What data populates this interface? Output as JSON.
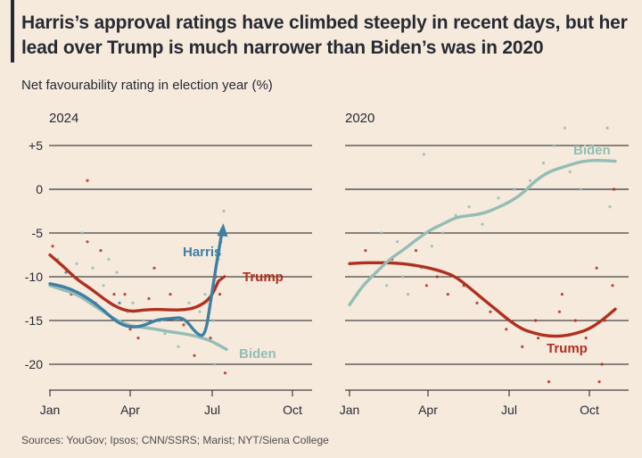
{
  "title": "Harris’s approval ratings have climbed steeply in recent days, but her lead over Trump is much narrower than Biden’s was in 2020",
  "subtitle": "Net favourability rating in election year (%)",
  "source": "Sources: YouGov; Ipsos; CNN/SSRS; Marist; NYT/Siena College",
  "colors": {
    "background": "#f6eadd",
    "harris": "#3f7fa3",
    "trump": "#b0301f",
    "biden": "#93bdb5",
    "gridline": "#1a1a1a",
    "zeroline": "#7a7a7a"
  },
  "chart_data": [
    {
      "type": "line",
      "panel": "2024",
      "ylim": [
        -23,
        6
      ],
      "yticks": [
        5,
        0,
        -5,
        -10,
        -15,
        -20
      ],
      "ytick_labels": [
        "+5",
        "0",
        "-5",
        "-10",
        "-15",
        "-20"
      ],
      "xticks": [
        "Jan",
        "Apr",
        "Jul",
        "Oct"
      ],
      "xlim_months": [
        1,
        10
      ],
      "series": [
        {
          "name": "Trump",
          "color": "#b0301f",
          "x": [
            1,
            1.5,
            2,
            2.5,
            3,
            3.5,
            4,
            4.5,
            5,
            5.5,
            6,
            6.5,
            7,
            7.3
          ],
          "y": [
            -7.5,
            -8.8,
            -10.3,
            -11.3,
            -12.5,
            -13.5,
            -14,
            -13.8,
            -13.7,
            -13.8,
            -13.8,
            -13.5,
            -12.5,
            -10.5
          ]
        },
        {
          "name": "Harris",
          "color": "#3f7fa3",
          "x": [
            1,
            1.5,
            2,
            2.5,
            3,
            3.5,
            4,
            4.5,
            5,
            5.5,
            6,
            6.5,
            6.8,
            7,
            7.2,
            7.45
          ],
          "y": [
            -10.8,
            -11.1,
            -11.7,
            -12.6,
            -13.8,
            -15.2,
            -15.8,
            -15.6,
            -14.9,
            -14.8,
            -14.6,
            -16.6,
            -16.8,
            -13,
            -9,
            -4.5
          ]
        },
        {
          "name": "Biden",
          "color": "#93bdb5",
          "x": [
            1,
            1.5,
            2,
            2.5,
            3,
            3.5,
            4,
            4.5,
            5,
            5.5,
            6,
            6.5,
            7,
            7.3,
            7.6
          ],
          "y": [
            -11,
            -11.5,
            -12,
            -13,
            -14,
            -15,
            -15.6,
            -15.8,
            -16,
            -16.3,
            -16.5,
            -16.8,
            -17.3,
            -17.8,
            -18.3
          ]
        }
      ],
      "labels": [
        {
          "text": "Harris",
          "series": "Harris"
        },
        {
          "text": "Trump",
          "series": "Trump"
        },
        {
          "text": "Biden",
          "series": "Biden"
        }
      ],
      "scatter": [
        {
          "x": 1.1,
          "y": -6.5,
          "c": "trump"
        },
        {
          "x": 1.3,
          "y": -8,
          "c": "biden"
        },
        {
          "x": 1.6,
          "y": -9.5,
          "c": "harris"
        },
        {
          "x": 1.8,
          "y": -12,
          "c": "trump"
        },
        {
          "x": 2,
          "y": -8.5,
          "c": "biden"
        },
        {
          "x": 2.2,
          "y": -5,
          "c": "biden"
        },
        {
          "x": 2.4,
          "y": -6,
          "c": "trump"
        },
        {
          "x": 2.4,
          "y": 1,
          "c": "trump"
        },
        {
          "x": 2.6,
          "y": -9,
          "c": "biden"
        },
        {
          "x": 2.7,
          "y": -13,
          "c": "trump"
        },
        {
          "x": 2.9,
          "y": -7,
          "c": "trump"
        },
        {
          "x": 3,
          "y": -11,
          "c": "biden"
        },
        {
          "x": 3.2,
          "y": -8,
          "c": "biden"
        },
        {
          "x": 3.4,
          "y": -12,
          "c": "trump"
        },
        {
          "x": 3.5,
          "y": -9.5,
          "c": "biden"
        },
        {
          "x": 3.6,
          "y": -13,
          "c": "harris"
        },
        {
          "x": 3.8,
          "y": -12,
          "c": "trump"
        },
        {
          "x": 3.9,
          "y": -14,
          "c": "biden"
        },
        {
          "x": 4,
          "y": -16,
          "c": "trump"
        },
        {
          "x": 4.1,
          "y": -13,
          "c": "biden"
        },
        {
          "x": 4.3,
          "y": -17,
          "c": "trump"
        },
        {
          "x": 4.5,
          "y": -15,
          "c": "biden"
        },
        {
          "x": 4.7,
          "y": -12.5,
          "c": "trump"
        },
        {
          "x": 4.9,
          "y": -9,
          "c": "trump"
        },
        {
          "x": 5.1,
          "y": -15,
          "c": "harris"
        },
        {
          "x": 5.3,
          "y": -16.5,
          "c": "biden"
        },
        {
          "x": 5.5,
          "y": -12,
          "c": "trump"
        },
        {
          "x": 5.8,
          "y": -18,
          "c": "biden"
        },
        {
          "x": 6,
          "y": -15.5,
          "c": "trump"
        },
        {
          "x": 6.2,
          "y": -13,
          "c": "biden"
        },
        {
          "x": 6.4,
          "y": -19,
          "c": "trump"
        },
        {
          "x": 6.6,
          "y": -14,
          "c": "biden"
        },
        {
          "x": 6.8,
          "y": -12,
          "c": "biden"
        },
        {
          "x": 7,
          "y": -17,
          "c": "trump"
        },
        {
          "x": 7.1,
          "y": -15,
          "c": "biden"
        },
        {
          "x": 7.2,
          "y": -10,
          "c": "trump"
        },
        {
          "x": 7.3,
          "y": -8,
          "c": "biden"
        },
        {
          "x": 7.4,
          "y": -6,
          "c": "biden"
        },
        {
          "x": 7.5,
          "y": -2.5,
          "c": "biden"
        },
        {
          "x": 7.35,
          "y": -12,
          "c": "trump"
        },
        {
          "x": 7.15,
          "y": -20,
          "c": "biden"
        },
        {
          "x": 7.55,
          "y": -21,
          "c": "trump"
        }
      ]
    },
    {
      "type": "line",
      "panel": "2020",
      "ylim": [
        -23,
        6
      ],
      "yticks": [
        5,
        0,
        -5,
        -10,
        -15,
        -20
      ],
      "xticks": [
        "Jan",
        "Apr",
        "Jul",
        "Oct"
      ],
      "xlim_months": [
        1,
        11
      ],
      "series": [
        {
          "name": "Biden",
          "color": "#93bdb5",
          "x": [
            1,
            1.5,
            2,
            2.5,
            3,
            3.5,
            4,
            4.5,
            5,
            5.5,
            6,
            6.5,
            7,
            7.5,
            8,
            8.5,
            9,
            9.5,
            10,
            10.5,
            11
          ],
          "y": [
            -13.2,
            -11,
            -9.5,
            -8,
            -7,
            -5.8,
            -4.7,
            -4,
            -3.2,
            -3,
            -2.8,
            -2.2,
            -1.5,
            -0.5,
            1,
            2,
            2.5,
            3,
            3.3,
            3.3,
            3.2
          ]
        },
        {
          "name": "Trump",
          "color": "#b0301f",
          "x": [
            1,
            1.5,
            2,
            2.5,
            3,
            3.5,
            4,
            4.5,
            5,
            5.5,
            6,
            6.5,
            7,
            7.5,
            8,
            8.5,
            9,
            9.5,
            10,
            10.5,
            11
          ],
          "y": [
            -8.5,
            -8.4,
            -8.4,
            -8.4,
            -8.5,
            -8.7,
            -9,
            -9.4,
            -10,
            -11.2,
            -12.5,
            -13.7,
            -15,
            -16,
            -16.5,
            -16.8,
            -16.8,
            -16.5,
            -16,
            -15,
            -13.7
          ]
        }
      ],
      "labels": [
        {
          "text": "Biden",
          "series": "Biden"
        },
        {
          "text": "Trump",
          "series": "Trump"
        }
      ],
      "scatter": [
        {
          "x": 1.3,
          "y": -12,
          "c": "biden"
        },
        {
          "x": 1.6,
          "y": -7,
          "c": "trump"
        },
        {
          "x": 1.8,
          "y": -10,
          "c": "biden"
        },
        {
          "x": 2,
          "y": -9.5,
          "c": "trump"
        },
        {
          "x": 2.2,
          "y": -5,
          "c": "biden"
        },
        {
          "x": 2.4,
          "y": -11,
          "c": "biden"
        },
        {
          "x": 2.6,
          "y": -8,
          "c": "trump"
        },
        {
          "x": 2.8,
          "y": -6,
          "c": "biden"
        },
        {
          "x": 3,
          "y": -10,
          "c": "biden"
        },
        {
          "x": 3.2,
          "y": -12,
          "c": "biden"
        },
        {
          "x": 3.5,
          "y": -7,
          "c": "trump"
        },
        {
          "x": 3.7,
          "y": -9,
          "c": "biden"
        },
        {
          "x": 3.9,
          "y": -11,
          "c": "trump"
        },
        {
          "x": 4.1,
          "y": -6.5,
          "c": "biden"
        },
        {
          "x": 4.3,
          "y": -10,
          "c": "trump"
        },
        {
          "x": 4.5,
          "y": -5,
          "c": "biden"
        },
        {
          "x": 4.7,
          "y": -12,
          "c": "trump"
        },
        {
          "x": 3.8,
          "y": 4,
          "c": "biden"
        },
        {
          "x": 5,
          "y": -3,
          "c": "biden"
        },
        {
          "x": 5.3,
          "y": -11,
          "c": "trump"
        },
        {
          "x": 5.5,
          "y": -2,
          "c": "biden"
        },
        {
          "x": 5.8,
          "y": -13,
          "c": "trump"
        },
        {
          "x": 6,
          "y": -4,
          "c": "biden"
        },
        {
          "x": 6.3,
          "y": -14,
          "c": "trump"
        },
        {
          "x": 6.6,
          "y": -1,
          "c": "biden"
        },
        {
          "x": 6.9,
          "y": -16,
          "c": "trump"
        },
        {
          "x": 7.2,
          "y": 0,
          "c": "biden"
        },
        {
          "x": 7.5,
          "y": -18,
          "c": "trump"
        },
        {
          "x": 7.8,
          "y": 1,
          "c": "biden"
        },
        {
          "x": 8,
          "y": -15,
          "c": "trump"
        },
        {
          "x": 8.3,
          "y": 3,
          "c": "biden"
        },
        {
          "x": 8.5,
          "y": -22,
          "c": "trump"
        },
        {
          "x": 8.7,
          "y": 5,
          "c": "biden"
        },
        {
          "x": 8.9,
          "y": -14,
          "c": "trump"
        },
        {
          "x": 9.1,
          "y": 7,
          "c": "biden"
        },
        {
          "x": 9.3,
          "y": 2,
          "c": "biden"
        },
        {
          "x": 9.5,
          "y": -15,
          "c": "trump"
        },
        {
          "x": 9.7,
          "y": 0,
          "c": "biden"
        },
        {
          "x": 9.9,
          "y": -17,
          "c": "trump"
        },
        {
          "x": 10.1,
          "y": 5,
          "c": "biden"
        },
        {
          "x": 10.3,
          "y": -9,
          "c": "trump"
        },
        {
          "x": 10.5,
          "y": -20,
          "c": "trump"
        },
        {
          "x": 10.7,
          "y": 7,
          "c": "biden"
        },
        {
          "x": 10.9,
          "y": -11,
          "c": "trump"
        },
        {
          "x": 10.8,
          "y": -2,
          "c": "biden"
        },
        {
          "x": 10.6,
          "y": -15,
          "c": "trump"
        },
        {
          "x": 9,
          "y": -12,
          "c": "trump"
        },
        {
          "x": 8.1,
          "y": -17,
          "c": "trump"
        },
        {
          "x": 10.95,
          "y": 0,
          "c": "trump"
        },
        {
          "x": 10.4,
          "y": -22,
          "c": "trump"
        }
      ]
    }
  ]
}
